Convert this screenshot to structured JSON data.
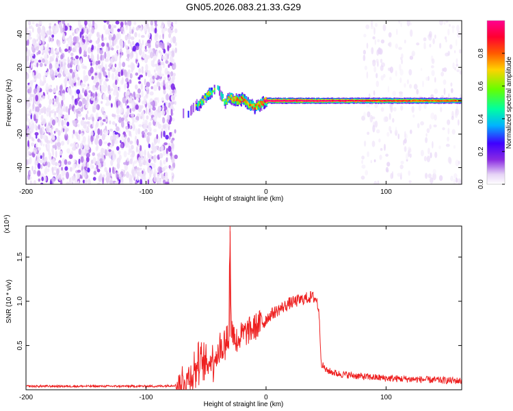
{
  "title": "GN05.2026.083.21.33.G29",
  "chart_data": [
    {
      "type": "heatmap",
      "title": "GN05.2026.083.21.33.G29",
      "xlabel": "Height of straight line (km)",
      "ylabel": "Frequency (Hz)",
      "xlim": [
        -200,
        163
      ],
      "ylim": [
        -50,
        48
      ],
      "x_ticks": [
        "-200",
        "-100",
        "0",
        "100"
      ],
      "y_ticks": [
        "40",
        "20",
        "0",
        "-20",
        "-40"
      ],
      "colorbar": {
        "label": "Normalized spectral amplitude",
        "range": [
          0,
          1
        ],
        "ticks": [
          "0.0",
          "0.2",
          "0.4",
          "0.6",
          "0.8"
        ],
        "colors": [
          "#ffffff",
          "#e6d4f6",
          "#8a2be2",
          "#3e00ff",
          "#00b4ff",
          "#00ffa0",
          "#66ff00",
          "#ffd200",
          "#ff5a00",
          "#ff0030",
          "#ff0090"
        ]
      },
      "noise_regions": [
        {
          "x": [
            -200,
            -75
          ],
          "level": "strong"
        },
        {
          "x": [
            80,
            163
          ],
          "level": "weak"
        }
      ],
      "ridge": {
        "x": [
          -75,
          -70,
          -65,
          -60,
          -55,
          -50,
          -45,
          -40,
          -35,
          -30,
          -25,
          -20,
          -15,
          -10,
          -5,
          0,
          10,
          30,
          60,
          90,
          120,
          163
        ],
        "freq": [
          -11,
          -8,
          -7,
          -4,
          -2,
          3,
          5,
          7,
          -1,
          2,
          0,
          1,
          -2,
          -4,
          -2,
          0,
          0,
          0,
          0,
          0,
          0,
          0
        ],
        "amplitude": [
          0.3,
          0.35,
          0.4,
          0.45,
          0.5,
          0.55,
          0.5,
          0.45,
          0.5,
          0.6,
          0.65,
          0.7,
          0.65,
          0.6,
          0.7,
          0.8,
          0.85,
          0.85,
          0.8,
          0.75,
          0.7,
          0.65
        ]
      }
    },
    {
      "type": "line",
      "xlabel": "Height of straight line (km)",
      "ylabel": "SNR (10 * v/v)",
      "y_scale_label": "(x10⁴)",
      "xlim": [
        -200,
        163
      ],
      "ylim": [
        0,
        1.85
      ],
      "x_ticks": [
        "-200",
        "-100",
        "0",
        "100"
      ],
      "y_ticks": [
        "0.5",
        "1.0",
        "1.5"
      ],
      "color": "#ee2020",
      "series": [
        {
          "x": [
            -200,
            -160,
            -120,
            -90,
            -75,
            -70,
            -65,
            -60,
            -55,
            -50,
            -45,
            -40,
            -35,
            -31,
            -30,
            -29,
            -25,
            -20,
            -15,
            -10,
            -5,
            0,
            5,
            10,
            15,
            20,
            25,
            30,
            35,
            38,
            40,
            42,
            44,
            46,
            50,
            60,
            80,
            100,
            120,
            140,
            163
          ],
          "y": [
            0.04,
            0.04,
            0.04,
            0.04,
            0.05,
            0.08,
            0.13,
            0.22,
            0.3,
            0.28,
            0.35,
            0.42,
            0.5,
            0.6,
            1.85,
            0.7,
            0.55,
            0.62,
            0.66,
            0.7,
            0.75,
            0.8,
            0.86,
            0.9,
            0.94,
            0.98,
            1.0,
            1.02,
            1.04,
            1.05,
            1.04,
            1.02,
            0.9,
            0.3,
            0.22,
            0.18,
            0.15,
            0.13,
            0.12,
            0.11,
            0.1
          ]
        }
      ]
    }
  ]
}
